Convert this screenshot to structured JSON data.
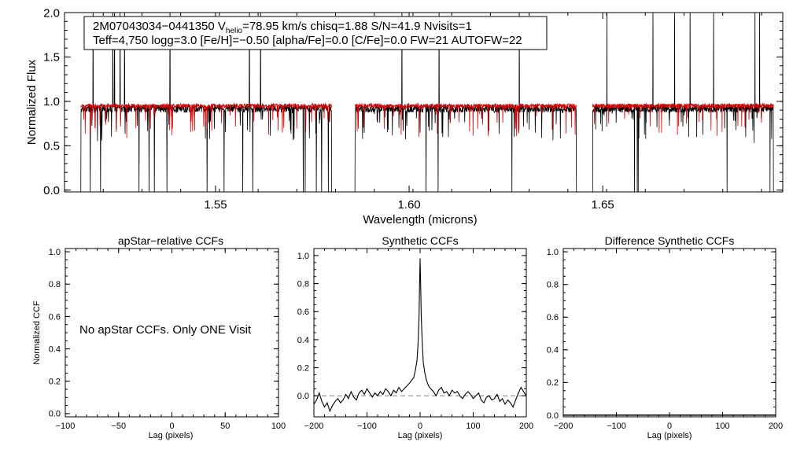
{
  "chart_data": [
    {
      "id": "spectrum",
      "type": "line",
      "xlabel": "Wavelength (microns)",
      "ylabel": "Normalized Flux",
      "xlim": [
        1.511,
        1.6965
      ],
      "ylim": [
        -0.02,
        2.0
      ],
      "x_ticks": [
        1.55,
        1.6,
        1.65
      ],
      "x_tick_labels": [
        "1.55",
        "1.60",
        "1.65"
      ],
      "y_ticks": [
        0.0,
        0.5,
        1.0,
        1.5,
        2.0
      ],
      "y_tick_labels": [
        "0.0",
        "0.5",
        "1.0",
        "1.5",
        "2.0"
      ],
      "chips": [
        [
          1.5152,
          1.58
        ],
        [
          1.586,
          1.6432
        ],
        [
          1.6474,
          1.6941
        ]
      ],
      "series": [
        {
          "color": "#000000",
          "continuum": 0.92
        },
        {
          "color": "#dd0000",
          "continuum": 0.95
        }
      ],
      "annotation": {
        "object_id": "2M07043034−0441350",
        "vhelio_prefix": "V",
        "vhelio_sub": "helio",
        "vhelio_rest": "=78.95 km/s  chisq=1.88  S/N=41.9  Nvisits=1",
        "line2": "Teff=4,750 logg=3.0 [Fe/H]=−0.50 [alpha/Fe]=0.0 [C/Fe]=0.0 FW=21 AUTOFW=22"
      }
    },
    {
      "id": "apstar_ccf",
      "type": "line",
      "title": "apStar−relative CCFs",
      "xlabel": "Lag (pixels)",
      "ylabel": "Normalized CCF",
      "xlim": [
        -100,
        100
      ],
      "ylim": [
        -0.02,
        1.02
      ],
      "x_ticks": [
        -100,
        -50,
        0,
        50,
        100
      ],
      "x_tick_labels": [
        "−100",
        "−50",
        "0",
        "50",
        "100"
      ],
      "y_ticks": [
        0.0,
        0.2,
        0.4,
        0.6,
        0.8,
        1.0
      ],
      "y_tick_labels": [
        "0.0",
        "0.2",
        "0.4",
        "0.6",
        "0.8",
        "1.0"
      ],
      "message": "No apStar CCFs.  Only ONE Visit",
      "series": []
    },
    {
      "id": "synthetic_ccf",
      "type": "line",
      "title": "Synthetic CCFs",
      "xlabel": "Lag (pixels)",
      "xlim": [
        -200,
        200
      ],
      "ylim": [
        -0.15,
        1.05
      ],
      "x_ticks": [
        -200,
        -100,
        0,
        100,
        200
      ],
      "x_tick_labels": [
        "−200",
        "−100",
        "0",
        "100",
        "200"
      ],
      "y_ticks": [
        0.0,
        0.2,
        0.4,
        0.6,
        0.8,
        1.0
      ],
      "y_tick_labels": [
        "0.0",
        "0.2",
        "0.4",
        "0.6",
        "0.8",
        "1.0"
      ],
      "zero_line": true,
      "series": [
        {
          "color": "#000000",
          "x": [
            -200,
            -195,
            -190,
            -185,
            -180,
            -175,
            -170,
            -165,
            -160,
            -155,
            -150,
            -145,
            -140,
            -135,
            -130,
            -125,
            -120,
            -115,
            -110,
            -105,
            -100,
            -95,
            -90,
            -85,
            -80,
            -75,
            -70,
            -65,
            -60,
            -55,
            -50,
            -45,
            -40,
            -35,
            -30,
            -25,
            -20,
            -16,
            -12,
            -9,
            -6,
            -4,
            -2,
            -1,
            0,
            1,
            2,
            4,
            6,
            9,
            12,
            16,
            20,
            25,
            30,
            35,
            40,
            45,
            50,
            55,
            60,
            65,
            70,
            75,
            80,
            85,
            90,
            95,
            100,
            105,
            110,
            115,
            120,
            125,
            130,
            135,
            140,
            145,
            150,
            155,
            160,
            165,
            170,
            175,
            180,
            185,
            190,
            195,
            200
          ],
          "y": [
            -0.06,
            -0.03,
            0.02,
            -0.04,
            -0.08,
            -0.05,
            -0.11,
            -0.07,
            -0.04,
            -0.02,
            -0.05,
            -0.03,
            0.01,
            -0.02,
            0.03,
            -0.01,
            -0.03,
            0.02,
            0.04,
            0.01,
            0.05,
            0.02,
            -0.01,
            0.02,
            0.0,
            0.03,
            0.01,
            0.05,
            0.03,
            0.0,
            0.04,
            0.02,
            0.06,
            0.03,
            0.05,
            0.07,
            0.09,
            0.11,
            0.13,
            0.18,
            0.25,
            0.36,
            0.55,
            0.78,
            0.98,
            0.8,
            0.58,
            0.38,
            0.24,
            0.16,
            0.11,
            0.07,
            0.05,
            0.03,
            0.0,
            0.04,
            0.06,
            0.02,
            0.03,
            0.0,
            0.04,
            0.02,
            0.03,
            0.0,
            -0.02,
            0.01,
            0.03,
            0.01,
            -0.02,
            0.0,
            0.02,
            -0.03,
            -0.05,
            -0.01,
            0.0,
            -0.03,
            -0.02,
            0.01,
            -0.04,
            -0.02,
            -0.06,
            -0.03,
            -0.05,
            -0.08,
            -0.03,
            0.02,
            0.06,
            0.03,
            0.0
          ]
        }
      ]
    },
    {
      "id": "difference_ccf",
      "type": "line",
      "title": "Difference Synthetic CCFs",
      "xlim": [
        -200,
        200
      ],
      "ylim": [
        -0.01,
        1.02
      ],
      "x_ticks": [
        -200,
        -100,
        0,
        100,
        200
      ],
      "x_tick_labels": [
        "−200",
        "−100",
        "0",
        "100",
        "200"
      ],
      "y_ticks": [
        0.0,
        0.2,
        0.4,
        0.6,
        0.8,
        1.0
      ],
      "y_tick_labels": [
        "0.0",
        "0.2",
        "0.4",
        "0.6",
        "0.8",
        "1.0"
      ],
      "xlabel": "Lag (pixels)",
      "series": [
        {
          "color": "#000000",
          "x": [
            -200,
            200
          ],
          "y": [
            0.0,
            0.0
          ]
        }
      ]
    }
  ]
}
